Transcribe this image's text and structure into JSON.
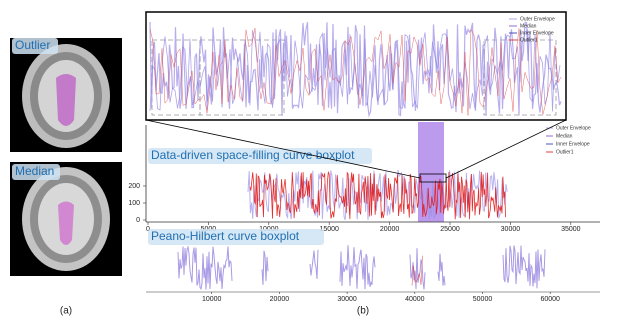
{
  "figure": {
    "panel_a": {
      "labels": [
        "Outlier",
        "Median"
      ],
      "caption": "(a)"
    },
    "panel_b": {
      "caption": "(b)",
      "inset_legend": [
        "Outer Envelope",
        "Median",
        "Inner Envelope",
        "Outlier1"
      ],
      "main": {
        "title": "Data-driven space-filling curve boxplot",
        "legend": [
          "Outer Envelope",
          "Median",
          "Inner Envelope",
          "Outlier1"
        ],
        "xticks": [
          0,
          5000,
          10000,
          15000,
          20000,
          25000,
          30000,
          35000
        ],
        "yticks": [
          0,
          100,
          200
        ]
      },
      "peano": {
        "title": "Peano-Hilbert curve boxplot",
        "xticks": [
          10000,
          20000,
          30000,
          40000,
          50000,
          60000
        ]
      }
    }
  }
}
